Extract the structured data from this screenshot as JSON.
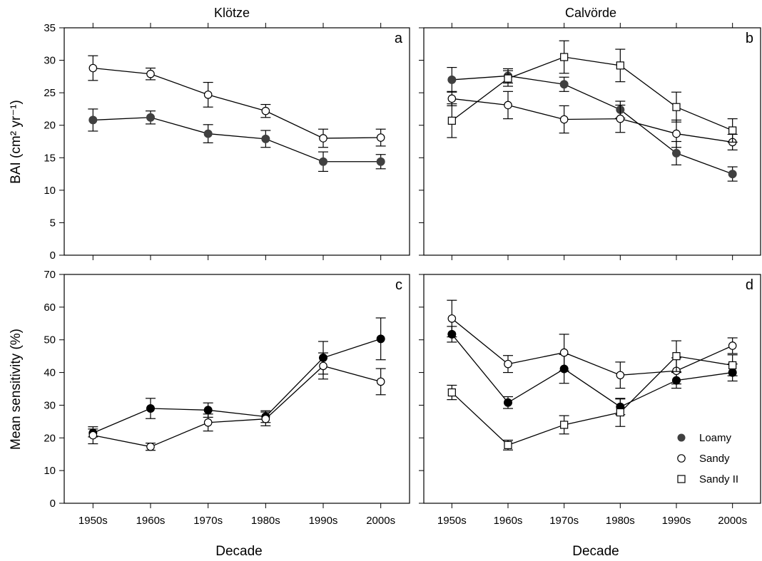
{
  "figure": {
    "columns": [
      "Klötze",
      "Calvörde"
    ],
    "ylabel_top": "BAI (cm² yr⁻¹)",
    "ylabel_bottom": "Mean sensitivity (%)",
    "xlabel": "Decade",
    "legend": [
      {
        "label": "Loamy",
        "marker": "filled-circle"
      },
      {
        "label": "Sandy",
        "marker": "open-circle"
      },
      {
        "label": "Sandy II",
        "marker": "open-square"
      }
    ],
    "colors": {
      "loamy_top": "#404040",
      "loamy_bottom": "#000000",
      "line": "#000000"
    }
  },
  "chart_data": [
    {
      "panel": "a",
      "column": "Klötze",
      "type": "line",
      "categories": [
        "1950s",
        "1960s",
        "1970s",
        "1980s",
        "1990s",
        "2000s"
      ],
      "ylabel": "BAI (cm² yr⁻¹)",
      "ylim": [
        0,
        35
      ],
      "yticks": [
        0,
        5,
        10,
        15,
        20,
        25,
        30,
        35
      ],
      "series": [
        {
          "name": "Loamy",
          "marker": "filled-circle",
          "values": [
            20.8,
            21.2,
            18.7,
            17.9,
            14.4,
            14.4
          ],
          "err": [
            1.7,
            1.0,
            1.4,
            1.3,
            1.5,
            1.1
          ]
        },
        {
          "name": "Sandy",
          "marker": "open-circle",
          "values": [
            28.8,
            27.9,
            24.7,
            22.2,
            18.0,
            18.1
          ],
          "err": [
            1.9,
            0.9,
            1.9,
            1.0,
            1.4,
            1.3
          ]
        }
      ]
    },
    {
      "panel": "b",
      "column": "Calvörde",
      "type": "line",
      "categories": [
        "1950s",
        "1960s",
        "1970s",
        "1980s",
        "1990s",
        "2000s"
      ],
      "ylabel": "BAI (cm² yr⁻¹)",
      "ylim": [
        0,
        35
      ],
      "yticks": [
        0,
        5,
        10,
        15,
        20,
        25,
        30,
        35
      ],
      "series": [
        {
          "name": "Loamy",
          "marker": "filled-circle",
          "values": [
            27.0,
            27.6,
            26.3,
            22.4,
            15.7,
            12.5
          ],
          "err": [
            1.9,
            1.1,
            1.1,
            1.3,
            1.8,
            1.1
          ]
        },
        {
          "name": "Sandy",
          "marker": "open-circle",
          "values": [
            24.1,
            23.1,
            20.9,
            21.0,
            18.7,
            17.4
          ],
          "err": [
            1.1,
            2.1,
            2.1,
            2.1,
            2.1,
            1.2
          ]
        },
        {
          "name": "Sandy II",
          "marker": "open-square",
          "values": [
            20.7,
            27.2,
            30.5,
            29.2,
            22.8,
            19.2
          ],
          "err": [
            2.6,
            1.2,
            2.5,
            2.5,
            2.3,
            1.8
          ]
        }
      ]
    },
    {
      "panel": "c",
      "column": "Klötze",
      "type": "line",
      "categories": [
        "1950s",
        "1960s",
        "1970s",
        "1980s",
        "1990s",
        "2000s"
      ],
      "xlabel": "Decade",
      "ylabel": "Mean sensitivity (%)",
      "ylim": [
        0,
        70
      ],
      "yticks": [
        0,
        10,
        20,
        30,
        40,
        50,
        60,
        70
      ],
      "series": [
        {
          "name": "Loamy",
          "marker": "filled-circle",
          "values": [
            21.5,
            29.0,
            28.5,
            26.5,
            44.5,
            50.3
          ],
          "err": [
            1.2,
            3.1,
            2.2,
            1.8,
            5.0,
            6.4
          ]
        },
        {
          "name": "Sandy",
          "marker": "open-circle",
          "values": [
            20.8,
            17.3,
            24.7,
            25.8,
            42.0,
            37.2
          ],
          "err": [
            2.6,
            1.1,
            2.6,
            2.1,
            4.0,
            4.0
          ]
        }
      ]
    },
    {
      "panel": "d",
      "column": "Calvörde",
      "type": "line",
      "categories": [
        "1950s",
        "1960s",
        "1970s",
        "1980s",
        "1990s",
        "2000s"
      ],
      "xlabel": "Decade",
      "ylabel": "Mean sensitivity (%)",
      "ylim": [
        0,
        70
      ],
      "yticks": [
        0,
        10,
        20,
        30,
        40,
        50,
        60,
        70
      ],
      "series": [
        {
          "name": "Loamy",
          "marker": "filled-circle",
          "values": [
            51.7,
            30.8,
            41.1,
            29.5,
            37.6,
            40.0
          ],
          "err": [
            2.4,
            1.8,
            4.4,
            2.4,
            2.4,
            2.6
          ]
        },
        {
          "name": "Sandy",
          "marker": "open-circle",
          "values": [
            56.5,
            42.6,
            46.1,
            39.2,
            40.5,
            48.2
          ],
          "err": [
            5.6,
            2.6,
            5.6,
            4.0,
            4.0,
            2.4
          ]
        },
        {
          "name": "Sandy II",
          "marker": "open-square",
          "values": [
            33.9,
            17.8,
            24.0,
            27.8,
            45.0,
            42.2
          ],
          "err": [
            2.2,
            1.5,
            2.8,
            4.3,
            4.7,
            3.2
          ]
        }
      ]
    }
  ]
}
